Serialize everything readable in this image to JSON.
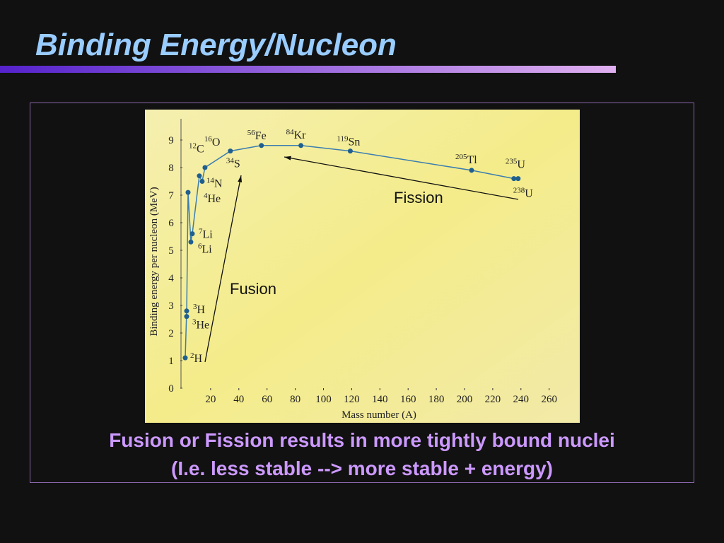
{
  "title": "Binding Energy/Nucleon",
  "caption": [
    "Fusion or Fission results in more tightly bound nuclei",
    "(I.e. less stable --> more stable + energy)"
  ],
  "chart_data": {
    "type": "line",
    "y_label": "Binding energy per nucleon (MeV)",
    "x_label": "Mass number (A)",
    "xlim": [
      0,
      270
    ],
    "ylim": [
      0,
      10
    ],
    "xticks": [
      20,
      40,
      60,
      80,
      100,
      120,
      140,
      160,
      180,
      200,
      220,
      240,
      260
    ],
    "yticks": [
      0,
      1,
      2,
      3,
      4,
      5,
      6,
      7,
      8,
      9
    ],
    "annotations": [
      "Fission",
      "Fusion"
    ],
    "series": [
      {
        "color": "#1f5f8f",
        "x": [
          2,
          3,
          3,
          4,
          6,
          7,
          12,
          14,
          16,
          34,
          56,
          84,
          119,
          205,
          235,
          238
        ],
        "values": [
          1.1,
          2.8,
          2.6,
          7.1,
          5.3,
          5.6,
          7.7,
          7.5,
          8.0,
          8.6,
          8.8,
          8.8,
          8.6,
          7.9,
          7.6,
          7.6
        ],
        "point_labels": [
          {
            "mass": "2",
            "symbol": "H"
          },
          {
            "mass": "3",
            "symbol": "H"
          },
          {
            "mass": "3",
            "symbol": "He"
          },
          {
            "mass": "4",
            "symbol": "He"
          },
          {
            "mass": "6",
            "symbol": "Li"
          },
          {
            "mass": "7",
            "symbol": "Li"
          },
          {
            "mass": "12",
            "symbol": "C"
          },
          {
            "mass": "14",
            "symbol": "N"
          },
          {
            "mass": "16",
            "symbol": "O"
          },
          {
            "mass": "34",
            "symbol": "S"
          },
          {
            "mass": "56",
            "symbol": "Fe"
          },
          {
            "mass": "84",
            "symbol": "Kr"
          },
          {
            "mass": "119",
            "symbol": "Sn"
          },
          {
            "mass": "205",
            "symbol": "Tl"
          },
          {
            "mass": "235",
            "symbol": "U"
          },
          {
            "mass": "238",
            "symbol": "U"
          }
        ]
      }
    ]
  }
}
